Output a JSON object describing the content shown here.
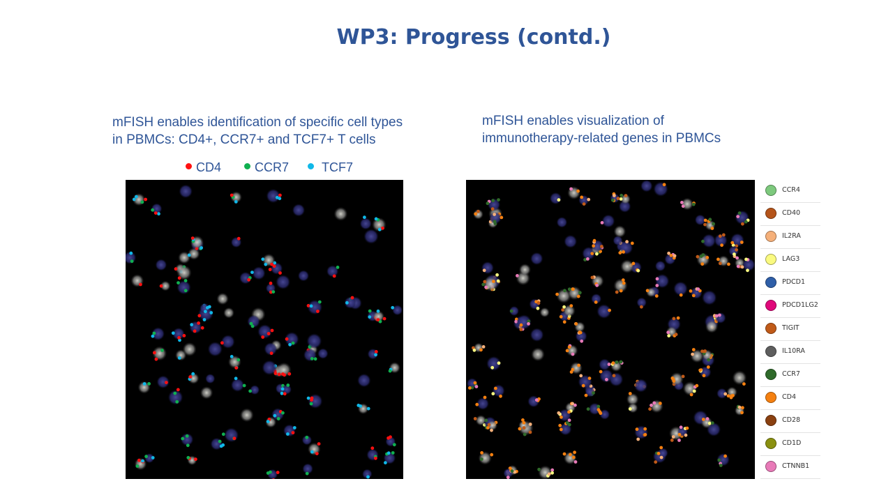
{
  "slide": {
    "title": "WP3: Progress (contd.)",
    "left_caption": [
      "mFISH  enables  identification of specific cell types",
      "in PBMCs: CD4+, CCR7+ and TCF7+ T cells"
    ],
    "right_caption": [
      "mFISH  enables visualization  of",
      "immunotherapy-related  genes in PBMCs"
    ]
  },
  "left_legend": [
    {
      "label": "CD4",
      "color": "#ff1010"
    },
    {
      "label": "CCR7",
      "color": "#10b050"
    },
    {
      "label": "TCF7",
      "color": "#10b8e8"
    }
  ],
  "gene_legend": [
    {
      "label": "CCR4",
      "color": "#7dc97d"
    },
    {
      "label": "CD40",
      "color": "#b5541a"
    },
    {
      "label": "IL2RA",
      "color": "#f5b07a"
    },
    {
      "label": "LAG3",
      "color": "#fafa80"
    },
    {
      "label": "PDCD1",
      "color": "#2f5fa8"
    },
    {
      "label": "PDCD1LG2",
      "color": "#e0087a"
    },
    {
      "label": "TIGIT",
      "color": "#c05a18"
    },
    {
      "label": "IL10RA",
      "color": "#5e5e5e"
    },
    {
      "label": "CCR7",
      "color": "#2f6a2a"
    },
    {
      "label": "CD4",
      "color": "#f58010"
    },
    {
      "label": "CD28",
      "color": "#8a4010"
    },
    {
      "label": "CD1D",
      "color": "#8a9010"
    },
    {
      "label": "CTNNB1",
      "color": "#e87ab8"
    }
  ]
}
